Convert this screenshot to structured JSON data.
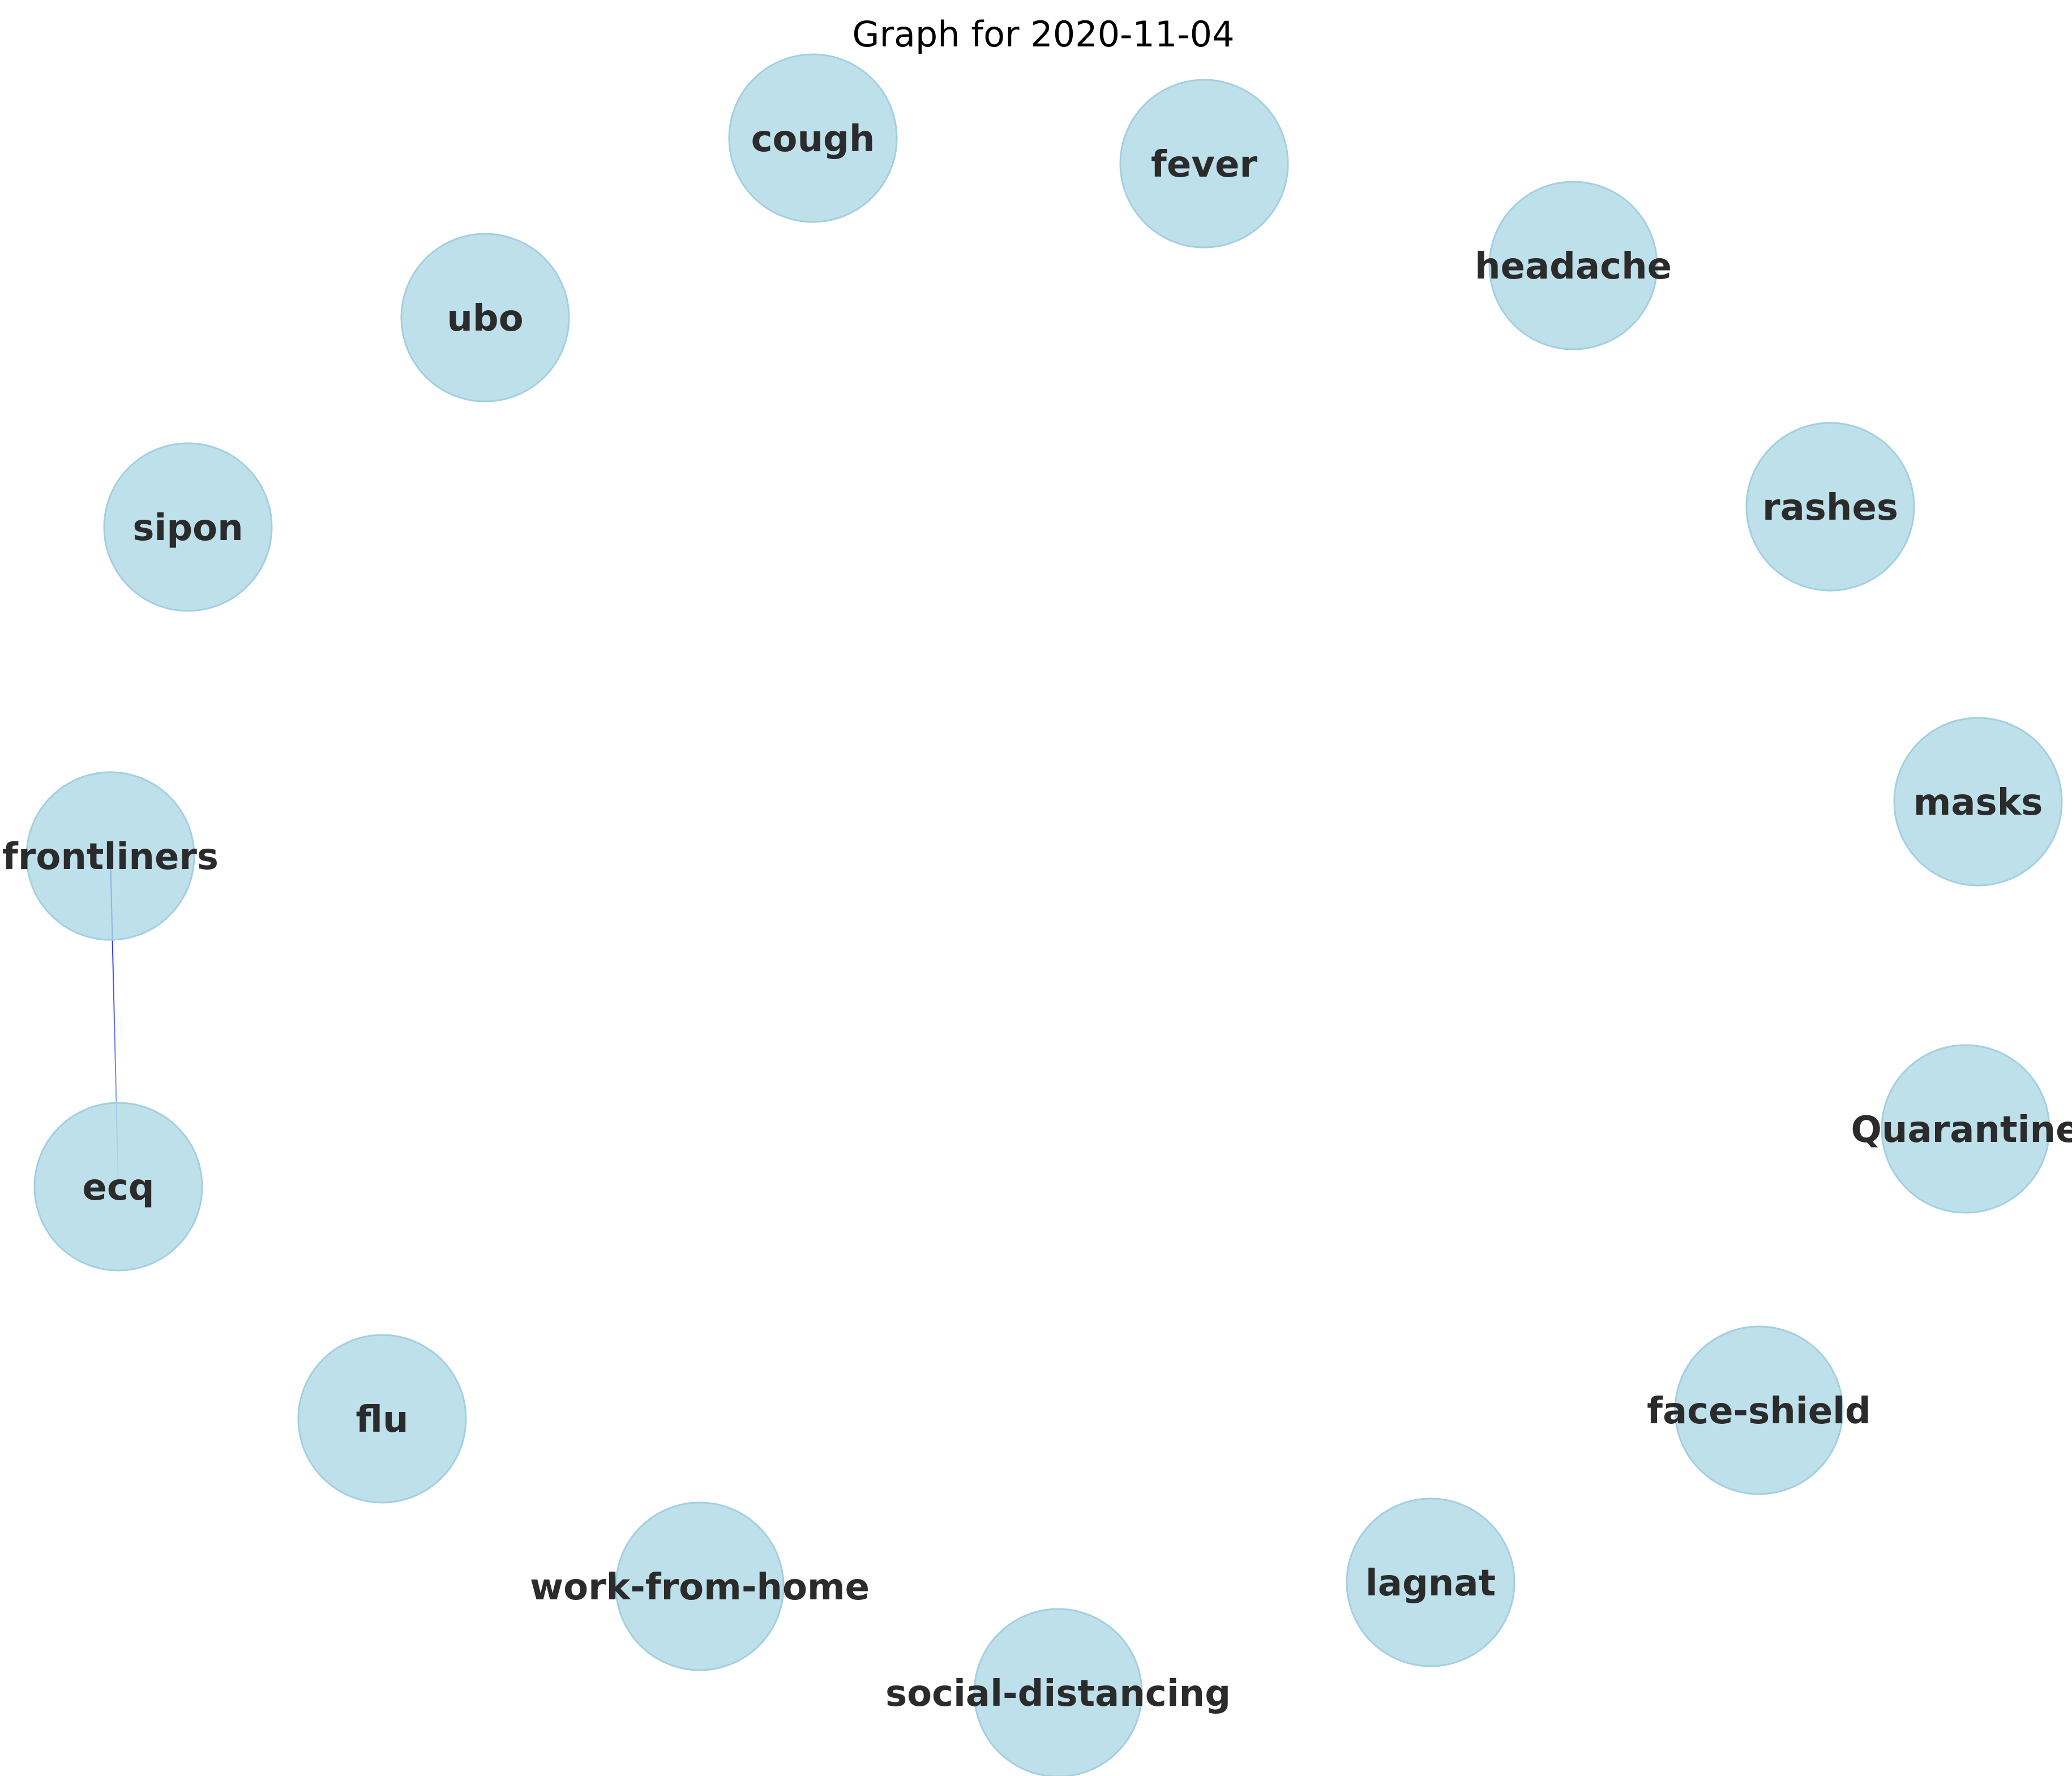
{
  "title": "Graph for 2020-11-04",
  "colors": {
    "node_fill": "#add8e6",
    "label": "#2b2b2b",
    "edge_start": "#0000ff",
    "edge_end": "#add8e6"
  },
  "nodes": [
    {
      "id": "cough",
      "label": "cough"
    },
    {
      "id": "fever",
      "label": "fever"
    },
    {
      "id": "headache",
      "label": "headache"
    },
    {
      "id": "rashes",
      "label": "rashes"
    },
    {
      "id": "masks",
      "label": "masks"
    },
    {
      "id": "quarantine",
      "label": "Quarantine"
    },
    {
      "id": "face-shield",
      "label": "face-shield"
    },
    {
      "id": "lagnat",
      "label": "lagnat"
    },
    {
      "id": "social-distancing",
      "label": "social-distancing"
    },
    {
      "id": "work-from-home",
      "label": "work-from-home"
    },
    {
      "id": "flu",
      "label": "flu"
    },
    {
      "id": "ecq",
      "label": "ecq"
    },
    {
      "id": "frontliners",
      "label": "frontliners"
    },
    {
      "id": "sipon",
      "label": "sipon"
    },
    {
      "id": "ubo",
      "label": "ubo"
    }
  ],
  "edges": [
    {
      "source": "frontliners",
      "target": "ecq"
    }
  ]
}
